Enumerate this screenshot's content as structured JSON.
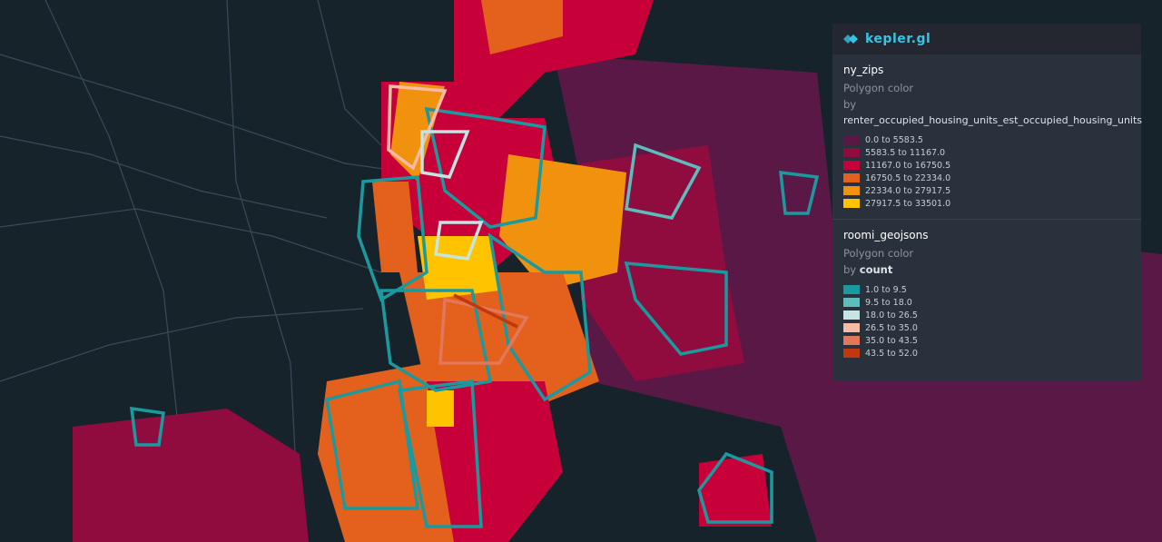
{
  "app": {
    "logo": "kepler.gl"
  },
  "layers": [
    {
      "name": "ny_zips",
      "property": "Polygon color",
      "by": "by",
      "field": "renter_occupied_housing_units_est_occupied_housing_units",
      "legend": [
        {
          "color": "#5a1846",
          "label": "0.0 to 5583.5"
        },
        {
          "color": "#900c3f",
          "label": "5583.5 to 11167.0"
        },
        {
          "color": "#c70039",
          "label": "11167.0 to 16750.5"
        },
        {
          "color": "#e3611c",
          "label": "16750.5 to 22334.0"
        },
        {
          "color": "#f1920e",
          "label": "22334.0 to 27917.5"
        },
        {
          "color": "#ffc300",
          "label": "27917.5 to 33501.0"
        }
      ]
    },
    {
      "name": "roomi_geojsons",
      "property": "Polygon color",
      "by": "by",
      "field": "count",
      "legend": [
        {
          "color": "#1a9a9f",
          "label": "1.0 to 9.5"
        },
        {
          "color": "#5dbdbd",
          "label": "9.5 to 18.0"
        },
        {
          "color": "#c6e5e2",
          "label": "18.0 to 26.5"
        },
        {
          "color": "#f6bba5",
          "label": "26.5 to 35.0"
        },
        {
          "color": "#e2775a",
          "label": "35.0 to 43.5"
        },
        {
          "color": "#c1370e",
          "label": "43.5 to 52.0"
        }
      ]
    }
  ]
}
